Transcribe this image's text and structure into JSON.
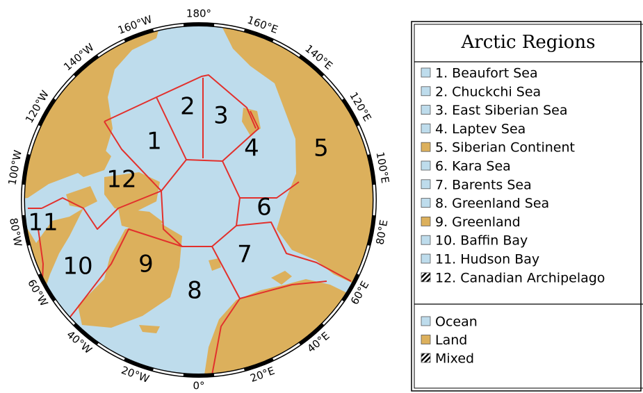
{
  "map": {
    "longitude_labels": [
      "180°",
      "160°E",
      "140°E",
      "120°E",
      "100°E",
      "80°E",
      "60°E",
      "40°E",
      "20°E",
      "0°",
      "20°W",
      "40°W",
      "60°W",
      "80°W",
      "100°W",
      "120°W",
      "140°W",
      "160°W"
    ],
    "region_numbers": [
      "1",
      "2",
      "3",
      "4",
      "5",
      "6",
      "7",
      "8",
      "9",
      "10",
      "11",
      "12"
    ],
    "ocean_color": "#bedcec",
    "land_color": "#dcb05c",
    "boundary_color": "#e2302c"
  },
  "legend": {
    "title": "Arctic Regions",
    "entries": [
      {
        "label": "1. Beaufort Sea",
        "color": "#bedcec"
      },
      {
        "label": "2. Chuckchi Sea",
        "color": "#bedcec"
      },
      {
        "label": "3. East Siberian Sea",
        "color": "#bedcec"
      },
      {
        "label": "4. Laptev Sea",
        "color": "#bedcec"
      },
      {
        "label": "5. Siberian Continent",
        "color": "#dcb05c"
      },
      {
        "label": "6. Kara Sea",
        "color": "#bedcec"
      },
      {
        "label": "7. Barents Sea",
        "color": "#bedcec"
      },
      {
        "label": "8. Greenland Sea",
        "color": "#bedcec"
      },
      {
        "label": "9. Greenland",
        "color": "#dcb05c"
      },
      {
        "label": "10. Baffin Bay",
        "color": "#bedcec"
      },
      {
        "label": "11. Hudson Bay",
        "color": "#bedcec"
      },
      {
        "label": "12. Canadian Archipelago",
        "hatched": true
      }
    ],
    "key": [
      {
        "label": "Ocean",
        "color": "#bedcec"
      },
      {
        "label": "Land",
        "color": "#dcb05c"
      },
      {
        "label": "Mixed",
        "hatched": true
      }
    ]
  }
}
